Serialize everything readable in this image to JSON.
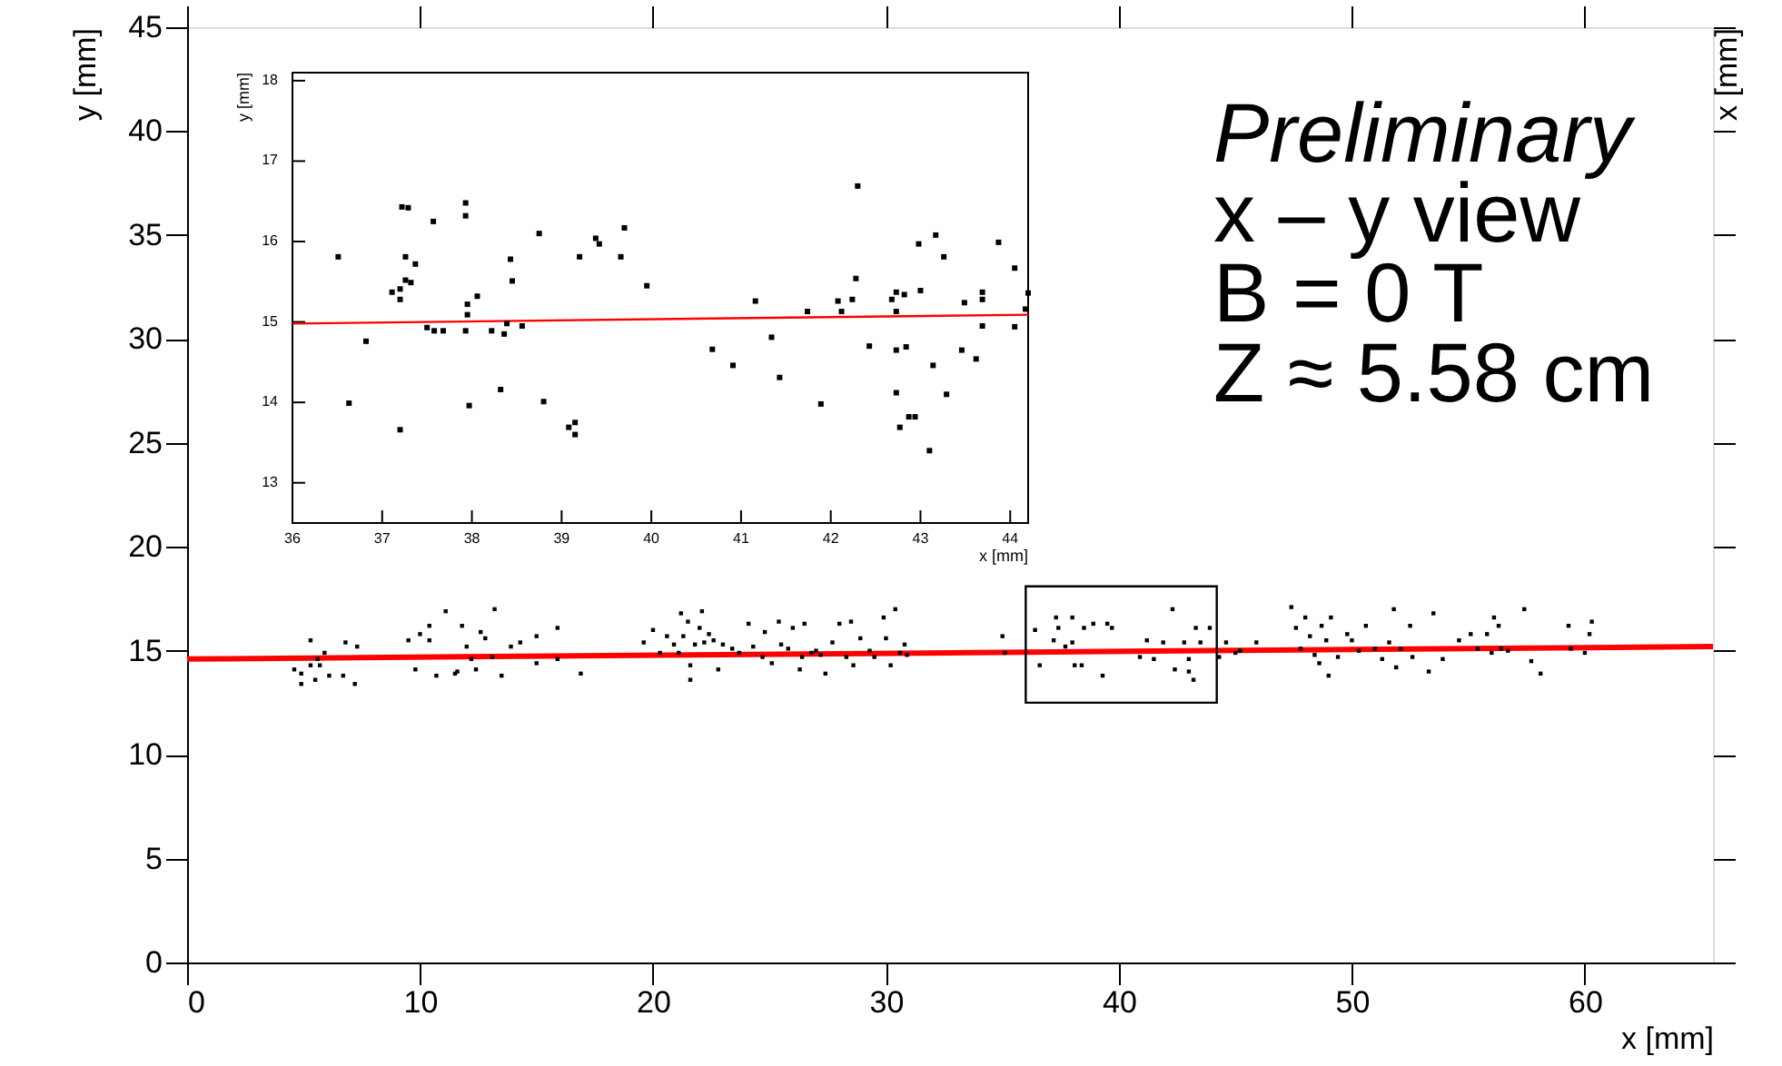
{
  "chart_data": [
    {
      "type": "scatter",
      "xlabel": "x [mm]",
      "ylabel": "y [mm]",
      "y2label": "x [mm]",
      "xlim": [
        0,
        65.5
      ],
      "ylim": [
        0,
        45
      ],
      "xticks": [
        0,
        10,
        20,
        30,
        40,
        50,
        60
      ],
      "yticks": [
        0,
        5,
        10,
        15,
        20,
        25,
        30,
        35,
        40,
        45
      ],
      "marker": "square",
      "grid": false,
      "annotations": [
        "Preliminary",
        "x – y view",
        "B = 0 T",
        "Z ≈ 5.58 cm"
      ],
      "series": [
        {
          "color": "#000000",
          "x": [
            4.6,
            4.9,
            4.9,
            5.3,
            5.3,
            5.5,
            5.6,
            5.7,
            5.9,
            6.1,
            6.7,
            6.8,
            7.2,
            7.3,
            9.5,
            9.8,
            10.0,
            10.4,
            10.4,
            10.7,
            11.1,
            11.5,
            11.6,
            11.8,
            12.0,
            12.2,
            12.4,
            12.6,
            12.8,
            13.1,
            13.2,
            13.5,
            13.9,
            14.3,
            15.0,
            15.0,
            15.9,
            15.9,
            16.9,
            19.6,
            20.0,
            20.3,
            20.6,
            20.9,
            21.1,
            21.2,
            21.3,
            21.5,
            21.6,
            21.6,
            21.8,
            22.0,
            22.1,
            22.2,
            22.4,
            22.6,
            22.8,
            23.0,
            23.4,
            23.7,
            24.1,
            24.3,
            24.7,
            24.8,
            25.1,
            25.4,
            25.5,
            25.8,
            26.0,
            26.3,
            26.4,
            26.5,
            26.8,
            27.0,
            27.2,
            27.4,
            27.7,
            28.0,
            28.3,
            28.5,
            28.6,
            28.9,
            29.3,
            29.5,
            29.9,
            30.0,
            30.2,
            30.4,
            30.6,
            30.8,
            30.9,
            35.0,
            35.1,
            36.4,
            36.6,
            37.2,
            37.3,
            37.4,
            37.7,
            38.0,
            38.1,
            38.0,
            38.4,
            38.5,
            38.9,
            39.3,
            39.5,
            39.7,
            40.9,
            41.2,
            41.5,
            41.9,
            42.3,
            42.4,
            42.8,
            43.0,
            43.0,
            43.2,
            43.3,
            43.5,
            43.9,
            44.3,
            44.6,
            45.0,
            45.2,
            45.9,
            47.4,
            47.6,
            47.8,
            48.0,
            48.2,
            48.4,
            48.6,
            48.7,
            48.9,
            49.0,
            49.1,
            49.4,
            49.8,
            50.0,
            50.3,
            50.6,
            51.0,
            51.3,
            51.6,
            51.8,
            51.9,
            52.1,
            52.5,
            52.6,
            53.3,
            53.5,
            53.9,
            54.6,
            55.1,
            55.4,
            55.8,
            56.0,
            56.1,
            56.3,
            56.4,
            56.7,
            57.4,
            57.7,
            58.1,
            59.3,
            59.4,
            60.0,
            60.3,
            60.2
          ],
          "values": [
            14.1,
            13.9,
            13.4,
            15.5,
            14.3,
            13.6,
            14.6,
            14.3,
            14.9,
            13.8,
            13.8,
            15.4,
            13.4,
            15.2,
            15.5,
            14.1,
            15.8,
            16.2,
            15.5,
            13.8,
            16.9,
            13.9,
            14.0,
            16.2,
            15.2,
            14.6,
            14.1,
            15.9,
            15.6,
            14.7,
            17.0,
            13.8,
            15.2,
            15.4,
            14.4,
            15.7,
            16.1,
            14.6,
            13.9,
            15.4,
            16.0,
            14.9,
            15.7,
            15.3,
            14.9,
            16.8,
            15.7,
            16.4,
            14.3,
            13.6,
            15.3,
            16.1,
            16.9,
            15.4,
            15.8,
            15.5,
            14.1,
            15.3,
            15.1,
            14.9,
            16.3,
            15.2,
            14.7,
            15.9,
            14.4,
            16.4,
            15.3,
            15.1,
            16.1,
            14.1,
            14.7,
            16.3,
            14.9,
            15.0,
            14.8,
            13.9,
            15.4,
            16.3,
            14.7,
            16.4,
            14.3,
            15.6,
            15.0,
            14.7,
            16.6,
            15.6,
            14.3,
            17.0,
            14.9,
            15.3,
            14.8,
            15.7,
            14.9,
            16.0,
            14.3,
            15.5,
            16.6,
            16.1,
            15.2,
            15.4,
            14.3,
            16.6,
            14.3,
            16.1,
            16.3,
            13.8,
            16.3,
            16.1,
            14.7,
            15.5,
            14.6,
            15.4,
            17.0,
            14.1,
            15.4,
            14.6,
            14.0,
            13.6,
            16.1,
            15.4,
            16.1,
            14.7,
            15.4,
            14.9,
            15.0,
            15.4,
            17.1,
            16.1,
            15.1,
            16.6,
            15.7,
            14.8,
            14.4,
            16.2,
            15.5,
            13.8,
            16.6,
            14.7,
            15.8,
            15.5,
            15.0,
            16.2,
            15.1,
            14.6,
            15.4,
            17.0,
            14.2,
            15.1,
            16.2,
            14.7,
            14.0,
            16.8,
            14.6,
            15.5,
            15.8,
            15.1,
            15.8,
            14.9,
            16.6,
            16.2,
            15.1,
            15.0,
            17.0,
            14.5,
            13.9,
            16.2,
            15.1,
            14.9,
            16.4,
            15.8
          ]
        },
        {
          "type": "line",
          "color": "#ff0000",
          "marker": "none",
          "x": [
            0,
            65.5
          ],
          "values": [
            14.6,
            15.2
          ]
        }
      ]
    },
    {
      "type": "scatter",
      "xlabel": "x [mm]",
      "ylabel": "y [mm]",
      "xlim": [
        36,
        44.2
      ],
      "ylim": [
        12.5,
        18.1
      ],
      "xticks": [
        36,
        37,
        38,
        39,
        40,
        41,
        42,
        43,
        44
      ],
      "yticks": [
        13,
        14,
        15,
        16,
        17,
        18
      ],
      "marker": "square",
      "series": [
        {
          "color": "#000000",
          "x": [
            36.51,
            36.63,
            36.82,
            37.22,
            37.29,
            37.26,
            37.37,
            37.26,
            37.32,
            37.11,
            37.2,
            37.2,
            37.2,
            37.57,
            37.5,
            37.58,
            37.68,
            37.93,
            37.93,
            37.93,
            37.95,
            37.95,
            38.06,
            37.97,
            38.22,
            38.36,
            38.39,
            38.43,
            38.45,
            38.32,
            38.56,
            38.75,
            38.8,
            39.08,
            39.15,
            39.15,
            39.2,
            39.38,
            39.42,
            39.66,
            39.7,
            39.95,
            40.68,
            40.91,
            41.16,
            41.34,
            41.43,
            41.74,
            41.89,
            42.08,
            42.12,
            42.24,
            42.28,
            42.3,
            42.43,
            42.68,
            42.73,
            42.73,
            42.73,
            42.73,
            42.82,
            42.84,
            42.77,
            42.87,
            42.94,
            42.98,
            43.0,
            43.1,
            43.14,
            43.17,
            43.26,
            43.29,
            43.46,
            43.49,
            43.62,
            43.69,
            43.69,
            43.69,
            43.87,
            44.05,
            44.05,
            44.17,
            44.2
          ],
          "values": [
            15.81,
            13.99,
            14.76,
            16.43,
            16.42,
            15.81,
            15.72,
            15.52,
            15.49,
            15.37,
            15.41,
            15.28,
            13.66,
            16.25,
            14.93,
            14.89,
            14.89,
            16.48,
            16.32,
            14.89,
            15.22,
            15.09,
            15.32,
            13.96,
            14.89,
            14.85,
            14.98,
            15.78,
            15.51,
            14.16,
            14.95,
            16.1,
            14.01,
            13.69,
            13.75,
            13.6,
            15.81,
            16.04,
            15.97,
            15.81,
            16.17,
            15.45,
            14.66,
            14.46,
            15.26,
            14.81,
            14.31,
            15.13,
            13.98,
            15.26,
            15.13,
            15.28,
            15.54,
            16.69,
            14.7,
            15.28,
            15.37,
            15.13,
            14.65,
            14.12,
            15.34,
            14.69,
            13.69,
            13.82,
            13.82,
            15.97,
            15.39,
            13.4,
            14.46,
            16.08,
            15.81,
            14.1,
            14.65,
            15.24,
            14.54,
            15.37,
            15.28,
            14.95,
            15.99,
            15.67,
            14.94,
            15.16,
            15.36
          ]
        },
        {
          "type": "line",
          "color": "#ff0000",
          "marker": "none",
          "x": [
            36,
            44.2
          ],
          "values": [
            14.98,
            15.09
          ]
        }
      ]
    }
  ]
}
